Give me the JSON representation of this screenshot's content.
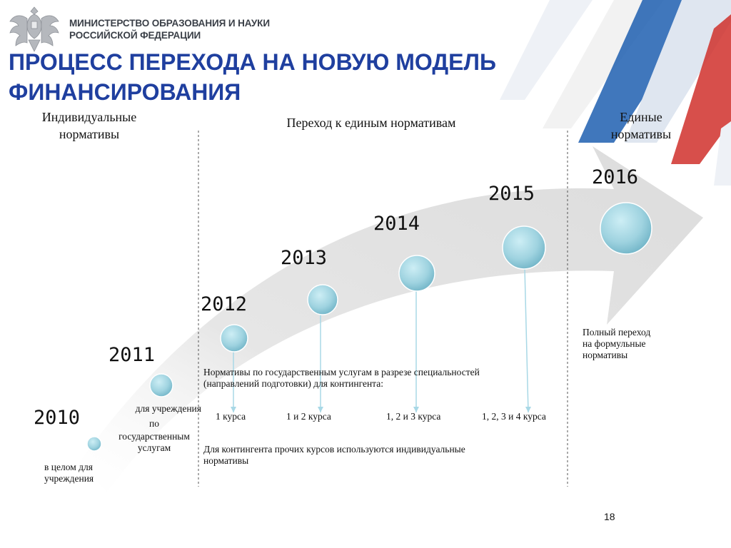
{
  "header": {
    "ministry_line1": "МИНИСТЕРСТВО ОБРАЗОВАНИЯ И НАУКИ",
    "ministry_line2": "РОССИЙСКОЙ ФЕДЕРАЦИИ",
    "title_line1": "ПРОЦЕСС ПЕРЕХОДА НА НОВУЮ МОДЕЛЬ",
    "title_line2": "ФИНАНСИРОВАНИЯ"
  },
  "phases": {
    "left_line1": "Индивидуальные",
    "left_line2": "нормативы",
    "middle": "Переход к единым нормативам",
    "right_line1": "Единые",
    "right_line2": "нормативы"
  },
  "years": [
    "2010",
    "2011",
    "2012",
    "2013",
    "2014",
    "2015",
    "2016"
  ],
  "notes": {
    "y2010_line1": "в целом для",
    "y2010_line2": "учреждения",
    "y2011_line1": "для учреждения",
    "y2011_line2": "по",
    "y2011_line3": "государственным",
    "y2011_line4": "услугам",
    "transition_line1": "Нормативы по государственным услугам в разрезе специальностей",
    "transition_line2": "(направлений подготовки) для контингента:",
    "course_2012": "1 курса",
    "course_2013": "1 и 2 курса",
    "course_2014": "1, 2 и 3 курса",
    "course_2015": "1, 2, 3 и 4 курса",
    "others_line1": "Для контингента прочих курсов используются индивидуальные",
    "others_line2": "нормативы",
    "final_line1": "Полный переход",
    "final_line2": "на формульные",
    "final_line3": "нормативы"
  },
  "page_number": "18",
  "colors": {
    "title": "#1f3f9f",
    "accent_blue": "#1f5fb0",
    "accent_red": "#d0302c",
    "node_fill": "#9fd3e0",
    "arrow_fill": "#e2e2e2"
  },
  "icons": [
    "coat-of-arms-emblem"
  ]
}
